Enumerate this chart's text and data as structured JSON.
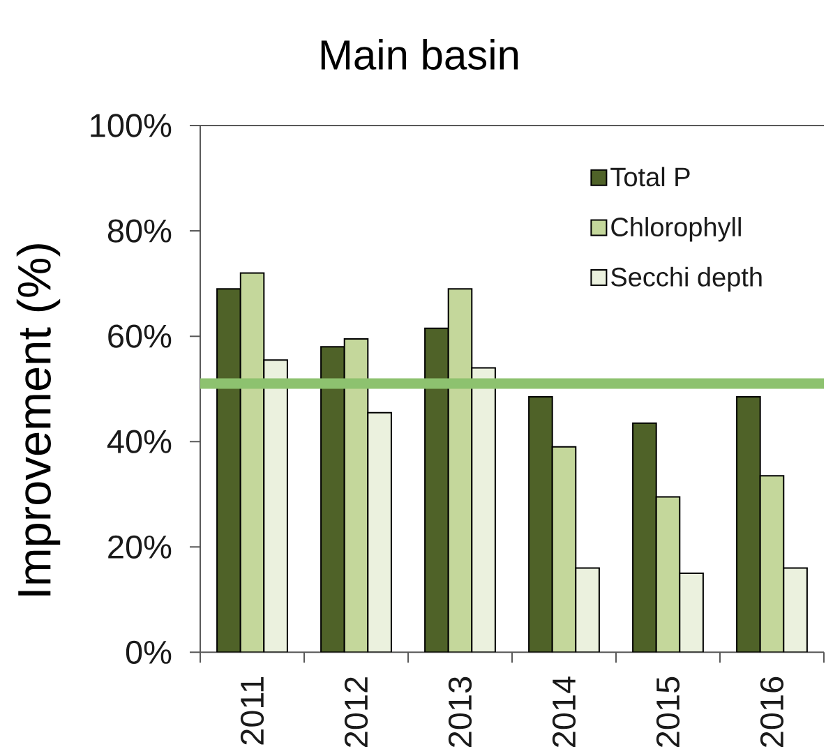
{
  "chart_data": {
    "type": "bar",
    "title": "Main basin",
    "ylabel": "Improvement (%)",
    "categories": [
      "2011",
      "2012",
      "2013",
      "2014",
      "2015",
      "2016"
    ],
    "series": [
      {
        "name": "Total P",
        "color": "#4f6228",
        "values": [
          69,
          58,
          61.5,
          48.5,
          43.5,
          48.5
        ]
      },
      {
        "name": "Chlorophyll",
        "color": "#c4d79b",
        "values": [
          72,
          59.5,
          69,
          39,
          29.5,
          33.5
        ]
      },
      {
        "name": "Secchi depth",
        "color": "#ebf1de",
        "values": [
          55.5,
          45.5,
          54,
          16,
          15,
          16
        ]
      }
    ],
    "ylim": [
      0,
      100
    ],
    "yticks": [
      {
        "value": 0,
        "label": "0%"
      },
      {
        "value": 20,
        "label": "20%"
      },
      {
        "value": 40,
        "label": "40%"
      },
      {
        "value": 60,
        "label": "60%"
      },
      {
        "value": 80,
        "label": "80%"
      },
      {
        "value": 100,
        "label": "100%"
      }
    ],
    "ref_lines": [
      {
        "axis": "y",
        "value": 51,
        "color": "#8dc26f"
      }
    ],
    "legend": "top right"
  }
}
